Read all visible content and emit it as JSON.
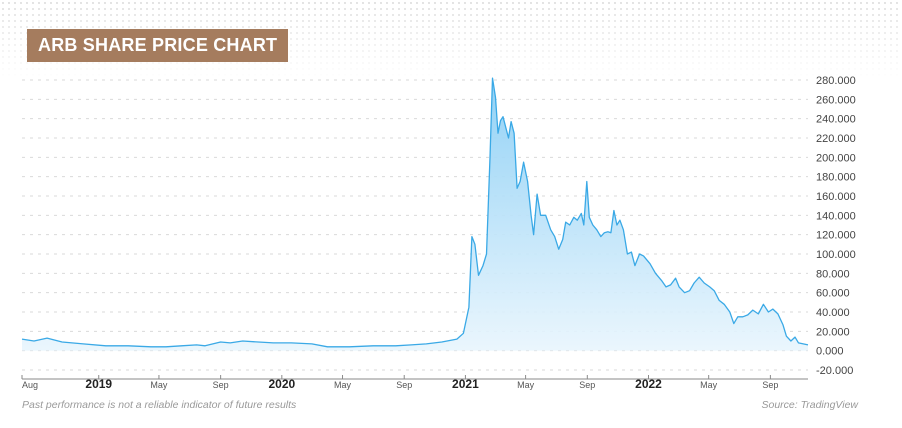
{
  "chart_data": {
    "type": "area",
    "title": "ARB SHARE PRICE CHART",
    "ylim": [
      -20000,
      280000
    ],
    "y_ticks": [
      280000,
      260000,
      240000,
      220000,
      200000,
      180000,
      160000,
      140000,
      120000,
      100000,
      80000,
      60000,
      40000,
      20000,
      0,
      -20000
    ],
    "y_tick_labels": [
      "280.000",
      "260.000",
      "240.000",
      "220.000",
      "200.000",
      "180.000",
      "160.000",
      "140.000",
      "120.000",
      "100.000",
      "80.000",
      "60.000",
      "40.000",
      "20.000",
      "0.000",
      "-20.000"
    ],
    "x_range": [
      "2018-08-01",
      "2022-11-15"
    ],
    "x_ticks": [
      {
        "date": "2018-08-01",
        "label": "Aug",
        "major": false
      },
      {
        "date": "2019-01-01",
        "label": "2019",
        "major": true
      },
      {
        "date": "2019-05-01",
        "label": "May",
        "major": false
      },
      {
        "date": "2019-09-01",
        "label": "Sep",
        "major": false
      },
      {
        "date": "2020-01-01",
        "label": "2020",
        "major": true
      },
      {
        "date": "2020-05-01",
        "label": "May",
        "major": false
      },
      {
        "date": "2020-09-01",
        "label": "Sep",
        "major": false
      },
      {
        "date": "2021-01-01",
        "label": "2021",
        "major": true
      },
      {
        "date": "2021-05-01",
        "label": "May",
        "major": false
      },
      {
        "date": "2021-09-01",
        "label": "Sep",
        "major": false
      },
      {
        "date": "2022-01-01",
        "label": "2022",
        "major": true
      },
      {
        "date": "2022-05-01",
        "label": "May",
        "major": false
      },
      {
        "date": "2022-09-01",
        "label": "Sep",
        "major": false
      }
    ],
    "grid": true,
    "line_color": "#3aa9e6",
    "fill_color": "#c7e6fa",
    "series": [
      {
        "points": [
          [
            "2018-08-01",
            12000
          ],
          [
            "2018-08-25",
            10000
          ],
          [
            "2018-09-20",
            13000
          ],
          [
            "2018-10-20",
            9000
          ],
          [
            "2018-12-01",
            7000
          ],
          [
            "2019-01-15",
            5000
          ],
          [
            "2019-03-01",
            5000
          ],
          [
            "2019-04-15",
            4000
          ],
          [
            "2019-05-15",
            4000
          ],
          [
            "2019-06-15",
            5000
          ],
          [
            "2019-07-15",
            6000
          ],
          [
            "2019-08-01",
            5000
          ],
          [
            "2019-09-01",
            9000
          ],
          [
            "2019-09-20",
            8000
          ],
          [
            "2019-10-15",
            10000
          ],
          [
            "2019-11-15",
            9000
          ],
          [
            "2019-12-15",
            8000
          ],
          [
            "2020-01-20",
            8000
          ],
          [
            "2020-03-01",
            7000
          ],
          [
            "2020-04-01",
            4000
          ],
          [
            "2020-05-15",
            4000
          ],
          [
            "2020-07-01",
            5000
          ],
          [
            "2020-08-15",
            5000
          ],
          [
            "2020-09-15",
            6000
          ],
          [
            "2020-10-15",
            7000
          ],
          [
            "2020-11-15",
            9000
          ],
          [
            "2020-12-15",
            12000
          ],
          [
            "2020-12-28",
            18000
          ],
          [
            "2021-01-08",
            45000
          ],
          [
            "2021-01-14",
            118000
          ],
          [
            "2021-01-20",
            110000
          ],
          [
            "2021-01-27",
            78000
          ],
          [
            "2021-02-05",
            88000
          ],
          [
            "2021-02-12",
            100000
          ],
          [
            "2021-02-19",
            200000
          ],
          [
            "2021-02-24",
            282000
          ],
          [
            "2021-03-02",
            262000
          ],
          [
            "2021-03-07",
            225000
          ],
          [
            "2021-03-12",
            238000
          ],
          [
            "2021-03-17",
            242000
          ],
          [
            "2021-03-23",
            230000
          ],
          [
            "2021-03-28",
            220000
          ],
          [
            "2021-04-02",
            237000
          ],
          [
            "2021-04-08",
            225000
          ],
          [
            "2021-04-14",
            168000
          ],
          [
            "2021-04-20",
            175000
          ],
          [
            "2021-04-27",
            195000
          ],
          [
            "2021-05-05",
            175000
          ],
          [
            "2021-05-12",
            140000
          ],
          [
            "2021-05-17",
            120000
          ],
          [
            "2021-05-24",
            162000
          ],
          [
            "2021-05-31",
            140000
          ],
          [
            "2021-06-10",
            140000
          ],
          [
            "2021-06-20",
            125000
          ],
          [
            "2021-06-28",
            118000
          ],
          [
            "2021-07-06",
            105000
          ],
          [
            "2021-07-14",
            115000
          ],
          [
            "2021-07-20",
            133000
          ],
          [
            "2021-07-28",
            130000
          ],
          [
            "2021-08-05",
            138000
          ],
          [
            "2021-08-12",
            135000
          ],
          [
            "2021-08-20",
            142000
          ],
          [
            "2021-08-25",
            130000
          ],
          [
            "2021-08-31",
            175000
          ],
          [
            "2021-09-05",
            138000
          ],
          [
            "2021-09-12",
            130000
          ],
          [
            "2021-09-20",
            125000
          ],
          [
            "2021-09-28",
            118000
          ],
          [
            "2021-10-05",
            122000
          ],
          [
            "2021-10-12",
            123000
          ],
          [
            "2021-10-18",
            122000
          ],
          [
            "2021-10-24",
            145000
          ],
          [
            "2021-10-30",
            130000
          ],
          [
            "2021-11-05",
            135000
          ],
          [
            "2021-11-12",
            125000
          ],
          [
            "2021-11-20",
            100000
          ],
          [
            "2021-11-28",
            102000
          ],
          [
            "2021-12-05",
            88000
          ],
          [
            "2021-12-14",
            100000
          ],
          [
            "2021-12-22",
            98000
          ],
          [
            "2022-01-04",
            90000
          ],
          [
            "2022-01-15",
            80000
          ],
          [
            "2022-01-28",
            72000
          ],
          [
            "2022-02-05",
            66000
          ],
          [
            "2022-02-14",
            68000
          ],
          [
            "2022-02-24",
            75000
          ],
          [
            "2022-03-03",
            66000
          ],
          [
            "2022-03-14",
            60000
          ],
          [
            "2022-03-24",
            62000
          ],
          [
            "2022-04-02",
            70000
          ],
          [
            "2022-04-12",
            76000
          ],
          [
            "2022-04-22",
            70000
          ],
          [
            "2022-05-03",
            66000
          ],
          [
            "2022-05-12",
            62000
          ],
          [
            "2022-05-22",
            52000
          ],
          [
            "2022-06-01",
            48000
          ],
          [
            "2022-06-12",
            40000
          ],
          [
            "2022-06-20",
            28000
          ],
          [
            "2022-06-28",
            35000
          ],
          [
            "2022-07-08",
            35000
          ],
          [
            "2022-07-18",
            37000
          ],
          [
            "2022-07-28",
            42000
          ],
          [
            "2022-08-08",
            38000
          ],
          [
            "2022-08-18",
            48000
          ],
          [
            "2022-08-28",
            40000
          ],
          [
            "2022-09-06",
            43000
          ],
          [
            "2022-09-16",
            38000
          ],
          [
            "2022-09-26",
            27000
          ],
          [
            "2022-10-03",
            15000
          ],
          [
            "2022-10-12",
            10000
          ],
          [
            "2022-10-20",
            14000
          ],
          [
            "2022-10-27",
            8000
          ],
          [
            "2022-11-15",
            6000
          ]
        ]
      }
    ]
  },
  "footer": {
    "disclaimer": "Past performance is not a reliable indicator of future results",
    "source": "Source: TradingView"
  }
}
